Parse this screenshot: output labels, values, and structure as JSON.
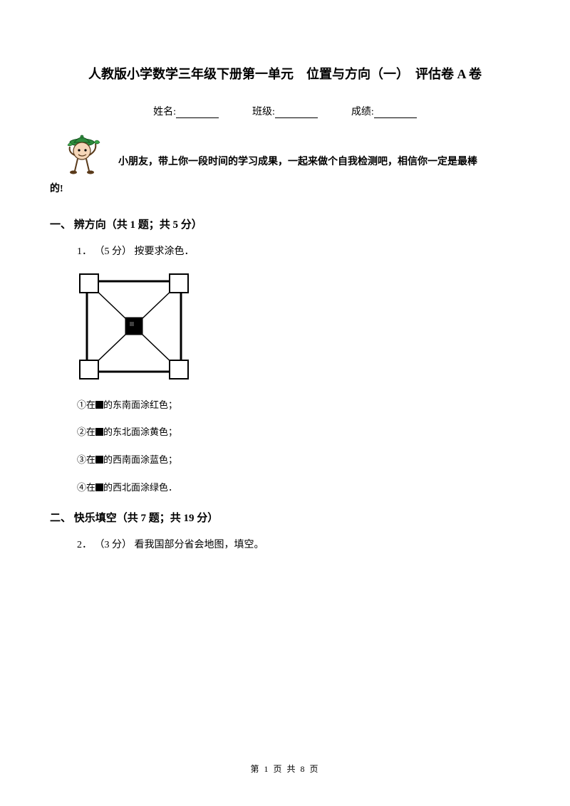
{
  "title": "人教版小学数学三年级下册第一单元　位置与方向（一）　评估卷 A 卷",
  "info": {
    "name_label": "姓名:",
    "class_label": "班级:",
    "score_label": "成绩:"
  },
  "intro_line1": "小朋友，带上你一段时间的学习成果，一起来做个自我检测吧，相信你一定是最棒",
  "intro_line2": "的!",
  "section1": {
    "head": "一、 辨方向（共 1 题；共 5 分）",
    "q1": {
      "num": "1．",
      "pts": "（5 分）",
      "text": "按要求涂色．",
      "opts": [
        "①在■的东南面涂红色；",
        "②在■的东北面涂黄色；",
        "③在■的西南面涂蓝色；",
        "④在■的西北面涂绿色．"
      ]
    }
  },
  "section2": {
    "head": "二、 快乐填空（共 7 题；共 19 分）",
    "q2": {
      "num": "2．",
      "pts": "（3 分）",
      "text": "看我国部分省会地图，填空。"
    }
  },
  "diagram": {
    "box_stroke": "#000000",
    "box_fill": "#ffffff",
    "center_fill": "#000000",
    "line_stroke": "#000000",
    "line_width": 1.5,
    "corner_size": 26,
    "center_size": 24,
    "width": 160,
    "height": 155
  },
  "mascot": {
    "hat_color": "#2e8b3d",
    "skin_color": "#f5d6b8",
    "outline": "#5a3a1a",
    "leaf_color": "#3aa648"
  },
  "footer": "第 1 页 共 8 页"
}
